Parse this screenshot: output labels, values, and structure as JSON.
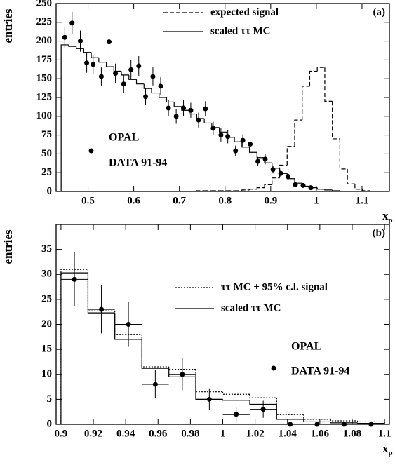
{
  "chart_data": [
    {
      "type": "scatter",
      "panel_label": "(a)",
      "ylabel": "entries",
      "xlabel": "x",
      "xlabel_sub": "p",
      "xlim": [
        0.43,
        1.16
      ],
      "xticks": [
        0.5,
        0.6,
        0.7,
        0.8,
        0.9,
        1,
        1.1
      ],
      "ylim": [
        0,
        250
      ],
      "yticks": [
        0,
        25,
        50,
        75,
        100,
        125,
        150,
        175,
        200,
        225,
        250
      ],
      "annotations": [
        "OPAL",
        "DATA 91-94"
      ],
      "series": [
        {
          "type": "points",
          "color": "#000000",
          "x": [
            0.449,
            0.465,
            0.483,
            0.497,
            0.511,
            0.529,
            0.546,
            0.56,
            0.578,
            0.594,
            0.611,
            0.626,
            0.642,
            0.659,
            0.676,
            0.693,
            0.709,
            0.725,
            0.742,
            0.757,
            0.774,
            0.791,
            0.806,
            0.823,
            0.839,
            0.855,
            0.872,
            0.888,
            0.905,
            0.922,
            0.938,
            0.954,
            0.971,
            0.988
          ],
          "values": [
            205,
            224,
            200,
            171,
            169,
            153,
            199,
            157,
            143,
            162,
            167,
            126,
            153,
            140,
            111,
            100,
            111,
            108,
            95,
            110,
            84,
            75,
            73,
            54,
            68,
            63,
            40,
            43,
            29,
            24,
            20,
            9,
            8,
            5
          ],
          "errors": [
            14,
            15,
            14,
            13,
            13,
            12,
            14,
            13,
            12,
            13,
            13,
            11,
            12,
            12,
            11,
            10,
            11,
            10,
            10,
            10,
            9,
            9,
            9,
            7,
            8,
            8,
            6,
            7,
            5,
            5,
            4,
            3,
            3,
            2
          ]
        },
        {
          "type": "step",
          "name": "expected signal",
          "dash": "dashed",
          "color": "#000000",
          "bins": [
            0.738,
            0.7545,
            0.771,
            0.7875,
            0.804,
            0.8205,
            0.837,
            0.8535,
            0.87,
            0.8865,
            0.903,
            0.9195,
            0.936,
            0.9525,
            0.969,
            0.9855,
            1.002,
            1.0185,
            1.035,
            1.0515,
            1.068,
            1.0845,
            1.101,
            1.1175
          ],
          "values": [
            1,
            1,
            1,
            1,
            1,
            1,
            2,
            3,
            5,
            9,
            18,
            35,
            60,
            95,
            140,
            160,
            165,
            120,
            70,
            30,
            10,
            3,
            1
          ]
        },
        {
          "type": "step",
          "name": "scaled ττ MC",
          "dash": "solid",
          "color": "#000000",
          "bins": [
            0.441,
            0.4575,
            0.474,
            0.4905,
            0.507,
            0.5235,
            0.54,
            0.5565,
            0.573,
            0.5895,
            0.606,
            0.6225,
            0.639,
            0.6555,
            0.672,
            0.6885,
            0.705,
            0.7215,
            0.738,
            0.7545,
            0.771,
            0.7875,
            0.804,
            0.8205,
            0.837,
            0.8535,
            0.87,
            0.8865,
            0.903,
            0.9195,
            0.936,
            0.9525,
            0.969,
            0.9855,
            1.002,
            1.0185,
            1.035,
            1.0515
          ],
          "values": [
            195,
            193,
            190,
            185,
            178,
            172,
            166,
            160,
            155,
            149,
            143,
            137,
            131,
            125,
            119,
            113,
            108,
            103,
            97,
            91,
            85,
            79,
            72,
            66,
            59,
            52,
            45,
            38,
            31,
            24,
            17,
            11,
            7,
            5,
            3,
            2,
            1
          ]
        }
      ]
    },
    {
      "type": "scatter",
      "panel_label": "(b)",
      "ylabel": "entries",
      "xlabel": "x",
      "xlabel_sub": "p",
      "xlim": [
        0.897,
        1.103
      ],
      "xticks": [
        0.9,
        0.92,
        0.94,
        0.96,
        0.98,
        1,
        1.02,
        1.04,
        1.06,
        1.08,
        1.1
      ],
      "ylim": [
        0,
        40
      ],
      "yticks": [
        0,
        5,
        10,
        15,
        20,
        25,
        30,
        35
      ],
      "annotations": [
        "OPAL",
        "DATA 91-94"
      ],
      "series": [
        {
          "type": "points",
          "color": "#000000",
          "x": [
            0.9083,
            0.925,
            0.9417,
            0.9583,
            0.975,
            0.9917,
            1.0083,
            1.025,
            1.0417,
            1.0583,
            1.075,
            1.0917
          ],
          "values": [
            29,
            23,
            20,
            8,
            10,
            5,
            2,
            3,
            0,
            0,
            0,
            0
          ],
          "errors": [
            5.4,
            4.8,
            4.5,
            2.8,
            3.2,
            2.2,
            1.4,
            1.7,
            0,
            0,
            0,
            0
          ],
          "xerrors": [
            0.0083,
            0.0083,
            0.0083,
            0.0083,
            0.0083,
            0.0083,
            0.0083,
            0.0083,
            0,
            0,
            0,
            0
          ]
        },
        {
          "type": "step",
          "name": "ττ MC + 95% c.l. signal",
          "dash": "dotted",
          "color": "#000000",
          "bins": [
            0.9,
            0.9167,
            0.9333,
            0.95,
            0.9667,
            0.9833,
            1.0,
            1.0167,
            1.0333,
            1.05,
            1.0667,
            1.0833,
            1.1
          ],
          "values": [
            31,
            22.7,
            18,
            11.5,
            11,
            6.5,
            6,
            5.3,
            2,
            1,
            0.7,
            0.5
          ]
        },
        {
          "type": "step",
          "name": "scaled ττ MC",
          "dash": "solid",
          "color": "#000000",
          "bins": [
            0.9,
            0.9167,
            0.9333,
            0.95,
            0.9667,
            0.9833,
            1.0,
            1.0167,
            1.0333,
            1.05,
            1.0667,
            1.0833,
            1.1
          ],
          "values": [
            30.3,
            22.3,
            17,
            11.2,
            9.5,
            5,
            4.8,
            4,
            1,
            0.5,
            0.3,
            0.2
          ]
        }
      ]
    }
  ]
}
